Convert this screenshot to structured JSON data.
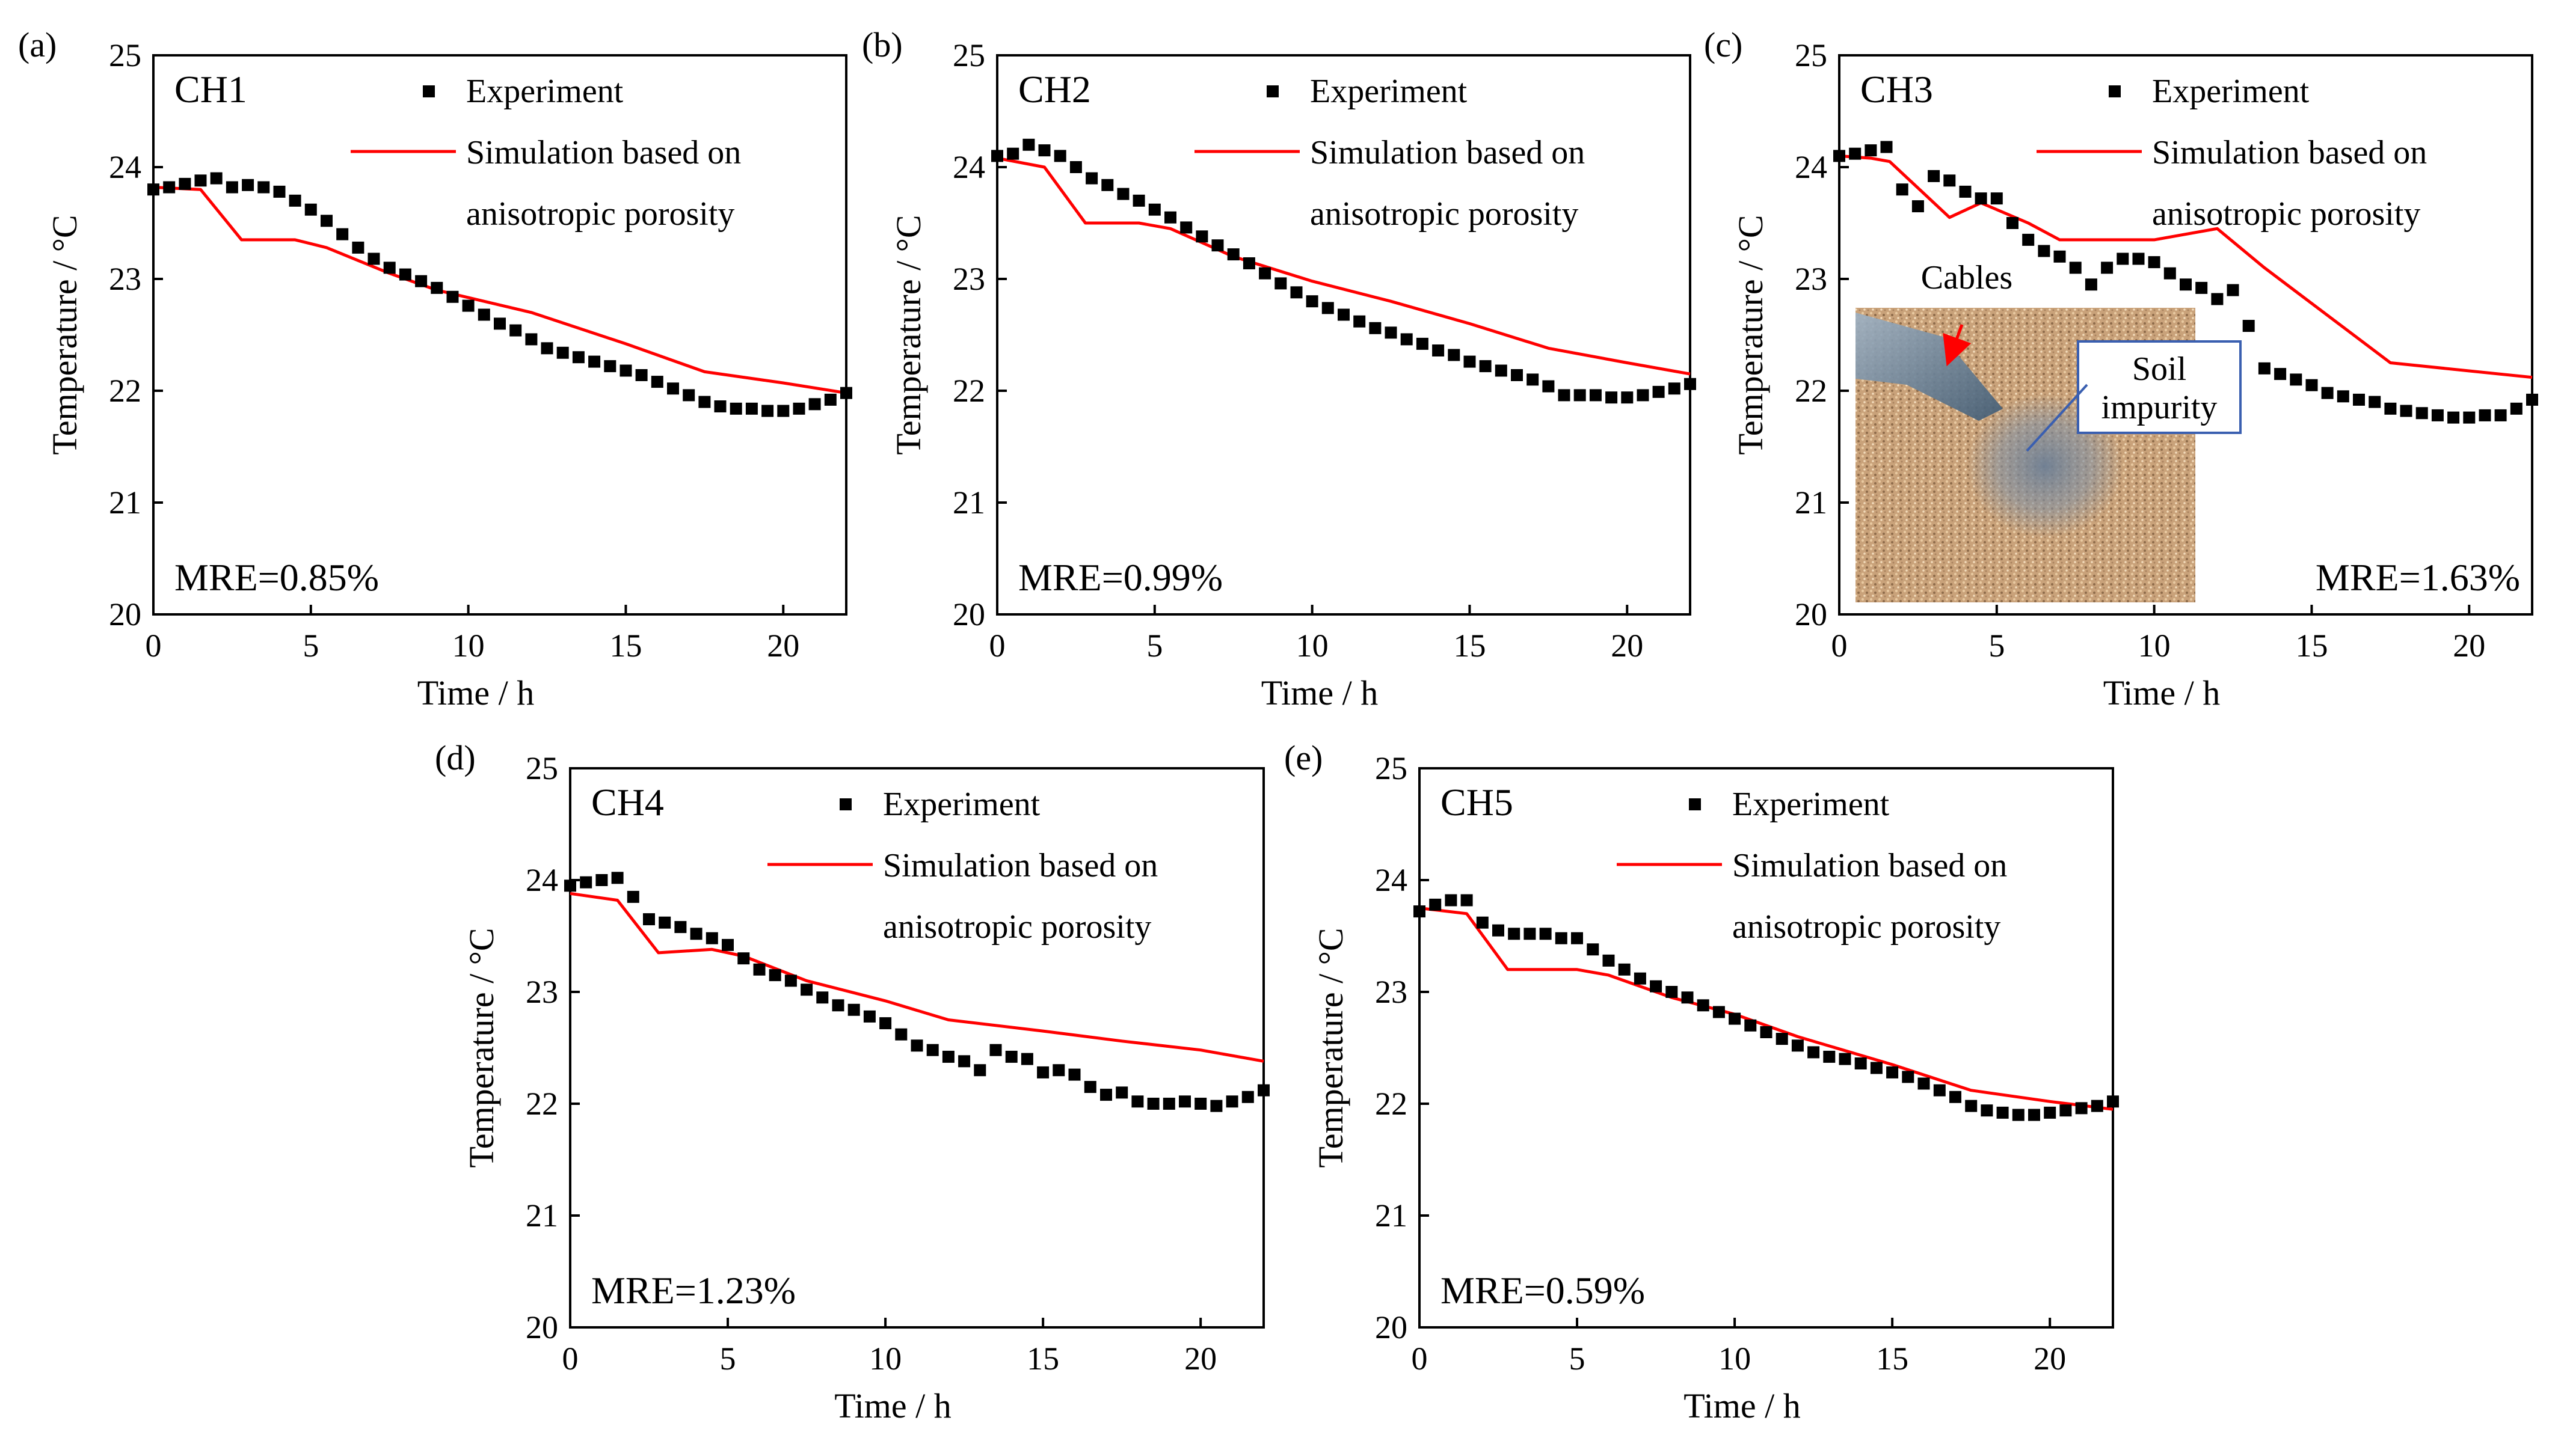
{
  "colors": {
    "experiment": "#000000",
    "simulation": "#ff0000",
    "inset_border": "#3a5fb0"
  },
  "chart_data": [
    {
      "panel": "(a)",
      "type": "scatter+line",
      "title": "CH1",
      "xlabel": "Time  /  h",
      "ylabel": "Temperature  /  °C",
      "xlim": [
        0,
        22
      ],
      "ylim": [
        20,
        25
      ],
      "xticks": [
        0,
        5,
        10,
        15,
        20
      ],
      "yticks": [
        20,
        21,
        22,
        23,
        24,
        25
      ],
      "legend": [
        "Experiment",
        "Simulation based on",
        "anisotropic porosity"
      ],
      "annotation": "MRE=0.85%",
      "series": [
        {
          "name": "Experiment",
          "kind": "scatter",
          "x": [
            0,
            0.5,
            1,
            1.5,
            2,
            2.5,
            3,
            3.5,
            4,
            4.5,
            5,
            5.5,
            6,
            6.5,
            7,
            7.5,
            8,
            8.5,
            9,
            9.5,
            10,
            10.5,
            11,
            11.5,
            12,
            12.5,
            13,
            13.5,
            14,
            14.5,
            15,
            15.5,
            16,
            16.5,
            17,
            17.5,
            18,
            18.5,
            19,
            19.5,
            20,
            20.5,
            21,
            21.5,
            22
          ],
          "y": [
            23.8,
            23.82,
            23.85,
            23.88,
            23.9,
            23.82,
            23.84,
            23.82,
            23.78,
            23.7,
            23.62,
            23.52,
            23.4,
            23.28,
            23.18,
            23.1,
            23.04,
            22.98,
            22.92,
            22.84,
            22.76,
            22.68,
            22.6,
            22.54,
            22.46,
            22.38,
            22.34,
            22.3,
            22.26,
            22.22,
            22.18,
            22.14,
            22.08,
            22.02,
            21.96,
            21.9,
            21.86,
            21.84,
            21.84,
            21.82,
            21.82,
            21.84,
            21.88,
            21.92,
            21.98
          ]
        },
        {
          "name": "Simulation based on anisotropic porosity",
          "kind": "line",
          "x": [
            0,
            1.5,
            2.8,
            4.5,
            5.5,
            7.5,
            9,
            12,
            15,
            17.5,
            20,
            22
          ],
          "y": [
            23.82,
            23.8,
            23.35,
            23.35,
            23.28,
            23.05,
            22.9,
            22.7,
            22.42,
            22.17,
            22.07,
            21.98
          ]
        }
      ]
    },
    {
      "panel": "(b)",
      "type": "scatter+line",
      "title": "CH2",
      "xlabel": "Time  /  h",
      "ylabel": "Temperature  /  °C",
      "xlim": [
        0,
        22
      ],
      "ylim": [
        20,
        25
      ],
      "xticks": [
        0,
        5,
        10,
        15,
        20
      ],
      "yticks": [
        20,
        21,
        22,
        23,
        24,
        25
      ],
      "legend": [
        "Experiment",
        "Simulation based on",
        "anisotropic porosity"
      ],
      "annotation": "MRE=0.99%",
      "series": [
        {
          "name": "Experiment",
          "kind": "scatter",
          "x": [
            0,
            0.5,
            1,
            1.5,
            2,
            2.5,
            3,
            3.5,
            4,
            4.5,
            5,
            5.5,
            6,
            6.5,
            7,
            7.5,
            8,
            8.5,
            9,
            9.5,
            10,
            10.5,
            11,
            11.5,
            12,
            12.5,
            13,
            13.5,
            14,
            14.5,
            15,
            15.5,
            16,
            16.5,
            17,
            17.5,
            18,
            18.5,
            19,
            19.5,
            20,
            20.5,
            21,
            21.5,
            22
          ],
          "y": [
            24.1,
            24.12,
            24.2,
            24.15,
            24.1,
            24.0,
            23.9,
            23.84,
            23.76,
            23.7,
            23.62,
            23.55,
            23.46,
            23.38,
            23.3,
            23.22,
            23.14,
            23.05,
            22.96,
            22.88,
            22.8,
            22.74,
            22.68,
            22.62,
            22.56,
            22.52,
            22.46,
            22.42,
            22.36,
            22.32,
            22.26,
            22.22,
            22.18,
            22.14,
            22.1,
            22.04,
            21.96,
            21.96,
            21.96,
            21.94,
            21.94,
            21.96,
            21.99,
            22.02,
            22.06
          ]
        },
        {
          "name": "Simulation based on anisotropic porosity",
          "kind": "line",
          "x": [
            0,
            1.5,
            2.8,
            4.5,
            5.5,
            7.5,
            10,
            12.5,
            15,
            17.5,
            20,
            22
          ],
          "y": [
            24.08,
            24.0,
            23.5,
            23.5,
            23.45,
            23.2,
            22.98,
            22.8,
            22.6,
            22.38,
            22.25,
            22.15
          ]
        }
      ]
    },
    {
      "panel": "(c)",
      "type": "scatter+line",
      "title": "CH3",
      "xlabel": "Time  /  h",
      "ylabel": "Temperature  /  °C",
      "xlim": [
        0,
        22
      ],
      "ylim": [
        20,
        25
      ],
      "xticks": [
        0,
        5,
        10,
        15,
        20
      ],
      "yticks": [
        20,
        21,
        22,
        23,
        24,
        25
      ],
      "legend": [
        "Experiment",
        "Simulation based on",
        "anisotropic porosity"
      ],
      "annotation": "MRE=1.63%",
      "inset": {
        "label_cables": "Cables",
        "label_soil": [
          "Soil",
          "impurity"
        ]
      },
      "series": [
        {
          "name": "Experiment",
          "kind": "scatter",
          "x": [
            0,
            0.5,
            1,
            1.5,
            2,
            2.5,
            3,
            3.5,
            4,
            4.5,
            5,
            5.5,
            6,
            6.5,
            7,
            7.5,
            8,
            8.5,
            9,
            9.5,
            10,
            10.5,
            11,
            11.5,
            12,
            12.5,
            13,
            13.5,
            14,
            14.5,
            15,
            15.5,
            16,
            16.5,
            17,
            17.5,
            18,
            18.5,
            19,
            19.5,
            20,
            20.5,
            21,
            21.5,
            22
          ],
          "y": [
            24.1,
            24.12,
            24.15,
            24.18,
            23.8,
            23.65,
            23.92,
            23.88,
            23.78,
            23.72,
            23.72,
            23.5,
            23.35,
            23.25,
            23.2,
            23.1,
            22.95,
            23.1,
            23.18,
            23.18,
            23.15,
            23.05,
            22.95,
            22.92,
            22.82,
            22.9,
            22.58,
            22.2,
            22.15,
            22.1,
            22.05,
            21.98,
            21.95,
            21.92,
            21.9,
            21.84,
            21.82,
            21.8,
            21.78,
            21.76,
            21.76,
            21.78,
            21.78,
            21.84,
            21.92
          ]
        },
        {
          "name": "Simulation based on anisotropic porosity",
          "kind": "line",
          "x": [
            0,
            1,
            1.6,
            3.5,
            4.5,
            6,
            7,
            9,
            10,
            12,
            13.5,
            17.5,
            22
          ],
          "y": [
            24.1,
            24.08,
            24.05,
            23.55,
            23.68,
            23.5,
            23.35,
            23.35,
            23.35,
            23.45,
            23.1,
            22.25,
            22.12
          ]
        }
      ]
    },
    {
      "panel": "(d)",
      "type": "scatter+line",
      "title": "CH4",
      "xlabel": "Time  /  h",
      "ylabel": "Temperature  /  °C",
      "xlim": [
        0,
        22
      ],
      "ylim": [
        20,
        25
      ],
      "xticks": [
        0,
        5,
        10,
        15,
        20
      ],
      "yticks": [
        20,
        21,
        22,
        23,
        24,
        25
      ],
      "legend": [
        "Experiment",
        "Simulation based on",
        "anisotropic porosity"
      ],
      "annotation": "MRE=1.23%",
      "series": [
        {
          "name": "Experiment",
          "kind": "scatter",
          "x": [
            0,
            0.5,
            1,
            1.5,
            2,
            2.5,
            3,
            3.5,
            4,
            4.5,
            5,
            5.5,
            6,
            6.5,
            7,
            7.5,
            8,
            8.5,
            9,
            9.5,
            10,
            10.5,
            11,
            11.5,
            12,
            12.5,
            13,
            13.5,
            14,
            14.5,
            15,
            15.5,
            16,
            16.5,
            17,
            17.5,
            18,
            18.5,
            19,
            19.5,
            20,
            20.5,
            21,
            21.5,
            22
          ],
          "y": [
            23.95,
            23.98,
            24.0,
            24.02,
            23.85,
            23.65,
            23.62,
            23.58,
            23.52,
            23.48,
            23.42,
            23.3,
            23.2,
            23.15,
            23.1,
            23.02,
            22.95,
            22.88,
            22.84,
            22.78,
            22.72,
            22.62,
            22.52,
            22.48,
            22.42,
            22.38,
            22.3,
            22.48,
            22.42,
            22.4,
            22.28,
            22.3,
            22.26,
            22.15,
            22.08,
            22.1,
            22.02,
            22.0,
            22.0,
            22.02,
            22.0,
            21.98,
            22.02,
            22.06,
            22.12
          ]
        },
        {
          "name": "Simulation based on anisotropic porosity",
          "kind": "line",
          "x": [
            0,
            1.5,
            2.8,
            4.5,
            5.5,
            7.5,
            10,
            12,
            15,
            17.5,
            20,
            22
          ],
          "y": [
            23.88,
            23.82,
            23.35,
            23.38,
            23.32,
            23.1,
            22.92,
            22.75,
            22.65,
            22.56,
            22.48,
            22.38
          ]
        }
      ]
    },
    {
      "panel": "(e)",
      "type": "scatter+line",
      "title": "CH5",
      "xlabel": "Time  /  h",
      "ylabel": "Temperature  /  °C",
      "xlim": [
        0,
        22
      ],
      "ylim": [
        20,
        25
      ],
      "xticks": [
        0,
        5,
        10,
        15,
        20
      ],
      "yticks": [
        20,
        21,
        22,
        23,
        24,
        25
      ],
      "legend": [
        "Experiment",
        "Simulation based on",
        "anisotropic porosity"
      ],
      "annotation": "MRE=0.59%",
      "series": [
        {
          "name": "Experiment",
          "kind": "scatter",
          "x": [
            0,
            0.5,
            1,
            1.5,
            2,
            2.5,
            3,
            3.5,
            4,
            4.5,
            5,
            5.5,
            6,
            6.5,
            7,
            7.5,
            8,
            8.5,
            9,
            9.5,
            10,
            10.5,
            11,
            11.5,
            12,
            12.5,
            13,
            13.5,
            14,
            14.5,
            15,
            15.5,
            16,
            16.5,
            17,
            17.5,
            18,
            18.5,
            19,
            19.5,
            20,
            20.5,
            21,
            21.5,
            22
          ],
          "y": [
            23.72,
            23.78,
            23.82,
            23.82,
            23.62,
            23.55,
            23.52,
            23.52,
            23.52,
            23.48,
            23.48,
            23.38,
            23.28,
            23.2,
            23.12,
            23.05,
            23.0,
            22.95,
            22.88,
            22.82,
            22.76,
            22.7,
            22.64,
            22.58,
            22.52,
            22.46,
            22.42,
            22.4,
            22.36,
            22.32,
            22.28,
            22.24,
            22.18,
            22.12,
            22.06,
            21.98,
            21.94,
            21.92,
            21.9,
            21.9,
            21.92,
            21.94,
            21.96,
            21.98,
            22.02
          ]
        },
        {
          "name": "Simulation based on anisotropic porosity",
          "kind": "line",
          "x": [
            0,
            1.5,
            2.8,
            5,
            6,
            8,
            10,
            12,
            15,
            17.5,
            20,
            22
          ],
          "y": [
            23.75,
            23.7,
            23.2,
            23.2,
            23.15,
            22.95,
            22.8,
            22.6,
            22.35,
            22.12,
            22.02,
            21.95
          ]
        }
      ]
    }
  ]
}
